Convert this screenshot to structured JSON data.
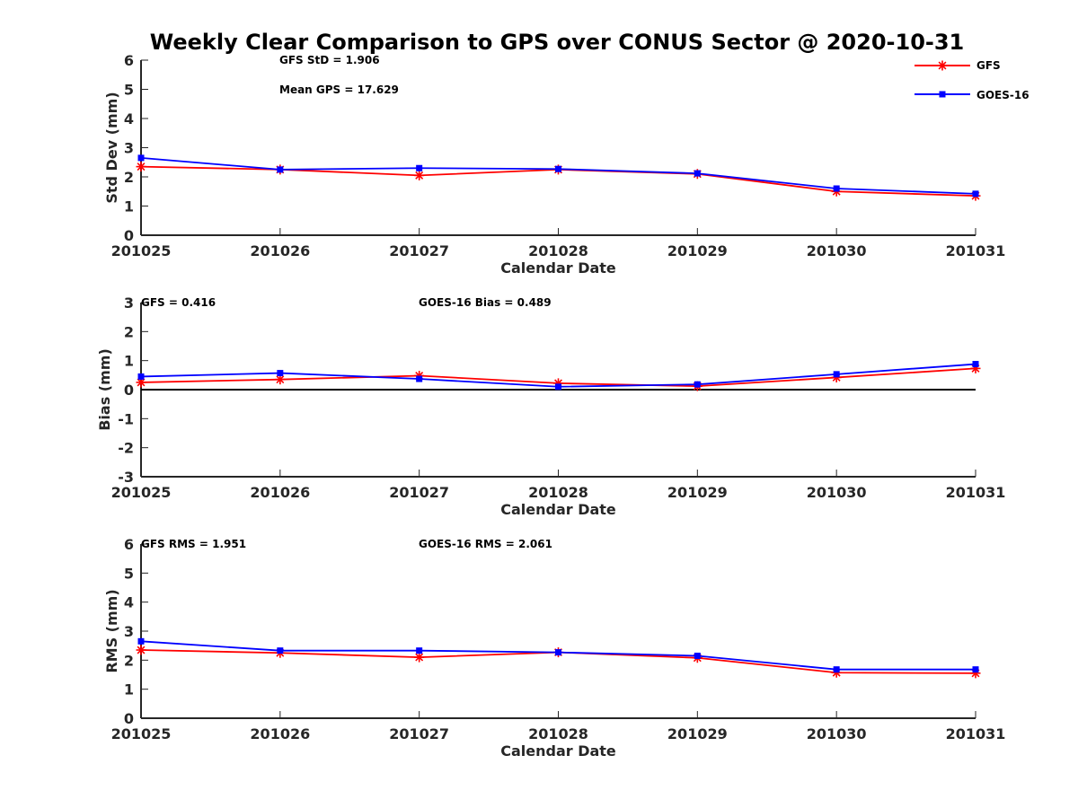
{
  "title": "Weekly Clear Comparison to GPS over CONUS Sector @ 2020-10-31",
  "legend": {
    "placement": "top-right",
    "entries": [
      {
        "name": "GFS",
        "color": "#ff0000",
        "marker": "asterisk"
      },
      {
        "name": "GOES-16",
        "color": "#0000ff",
        "marker": "square"
      }
    ]
  },
  "chart_data": [
    {
      "type": "line",
      "xlabel": "Calendar Date",
      "ylabel": "Std Dev (mm)",
      "categories": [
        "201025",
        "201026",
        "201027",
        "201028",
        "201029",
        "201030",
        "201031"
      ],
      "ylim": [
        0,
        6
      ],
      "yticks": [
        "0",
        "1",
        "2",
        "3",
        "4",
        "5",
        "6"
      ],
      "annotations": [
        "GFS StD = 1.906",
        "Mean GPS = 17.629"
      ],
      "zero_line": false,
      "series": [
        {
          "name": "GFS",
          "color": "#ff0000",
          "values": [
            2.35,
            2.25,
            2.05,
            2.25,
            2.1,
            1.5,
            1.35
          ]
        },
        {
          "name": "GOES-16",
          "color": "#0000ff",
          "values": [
            2.65,
            2.25,
            2.3,
            2.27,
            2.12,
            1.6,
            1.42
          ]
        }
      ]
    },
    {
      "type": "line",
      "xlabel": "Calendar Date",
      "ylabel": "Bias (mm)",
      "categories": [
        "201025",
        "201026",
        "201027",
        "201028",
        "201029",
        "201030",
        "201031"
      ],
      "ylim": [
        -3,
        3
      ],
      "yticks": [
        "-3",
        "-2",
        "-1",
        "0",
        "1",
        "2",
        "3"
      ],
      "annotations": [
        "GFS = 0.416",
        "GOES-16 Bias  = 0.489"
      ],
      "zero_line": true,
      "series": [
        {
          "name": "GFS",
          "color": "#ff0000",
          "values": [
            0.25,
            0.35,
            0.48,
            0.22,
            0.12,
            0.42,
            0.73
          ]
        },
        {
          "name": "GOES-16",
          "color": "#0000ff",
          "values": [
            0.45,
            0.57,
            0.37,
            0.1,
            0.18,
            0.53,
            0.88
          ]
        }
      ]
    },
    {
      "type": "line",
      "xlabel": "Calendar Date",
      "ylabel": "RMS (mm)",
      "categories": [
        "201025",
        "201026",
        "201027",
        "201028",
        "201029",
        "201030",
        "201031"
      ],
      "ylim": [
        0,
        6
      ],
      "yticks": [
        "0",
        "1",
        "2",
        "3",
        "4",
        "5",
        "6"
      ],
      "annotations": [
        "GFS RMS = 1.951",
        "GOES-16 RMS = 2.061"
      ],
      "zero_line": false,
      "series": [
        {
          "name": "GFS",
          "color": "#ff0000",
          "values": [
            2.35,
            2.25,
            2.1,
            2.27,
            2.08,
            1.57,
            1.55
          ]
        },
        {
          "name": "GOES-16",
          "color": "#0000ff",
          "values": [
            2.65,
            2.33,
            2.33,
            2.27,
            2.15,
            1.68,
            1.68
          ]
        }
      ]
    }
  ]
}
